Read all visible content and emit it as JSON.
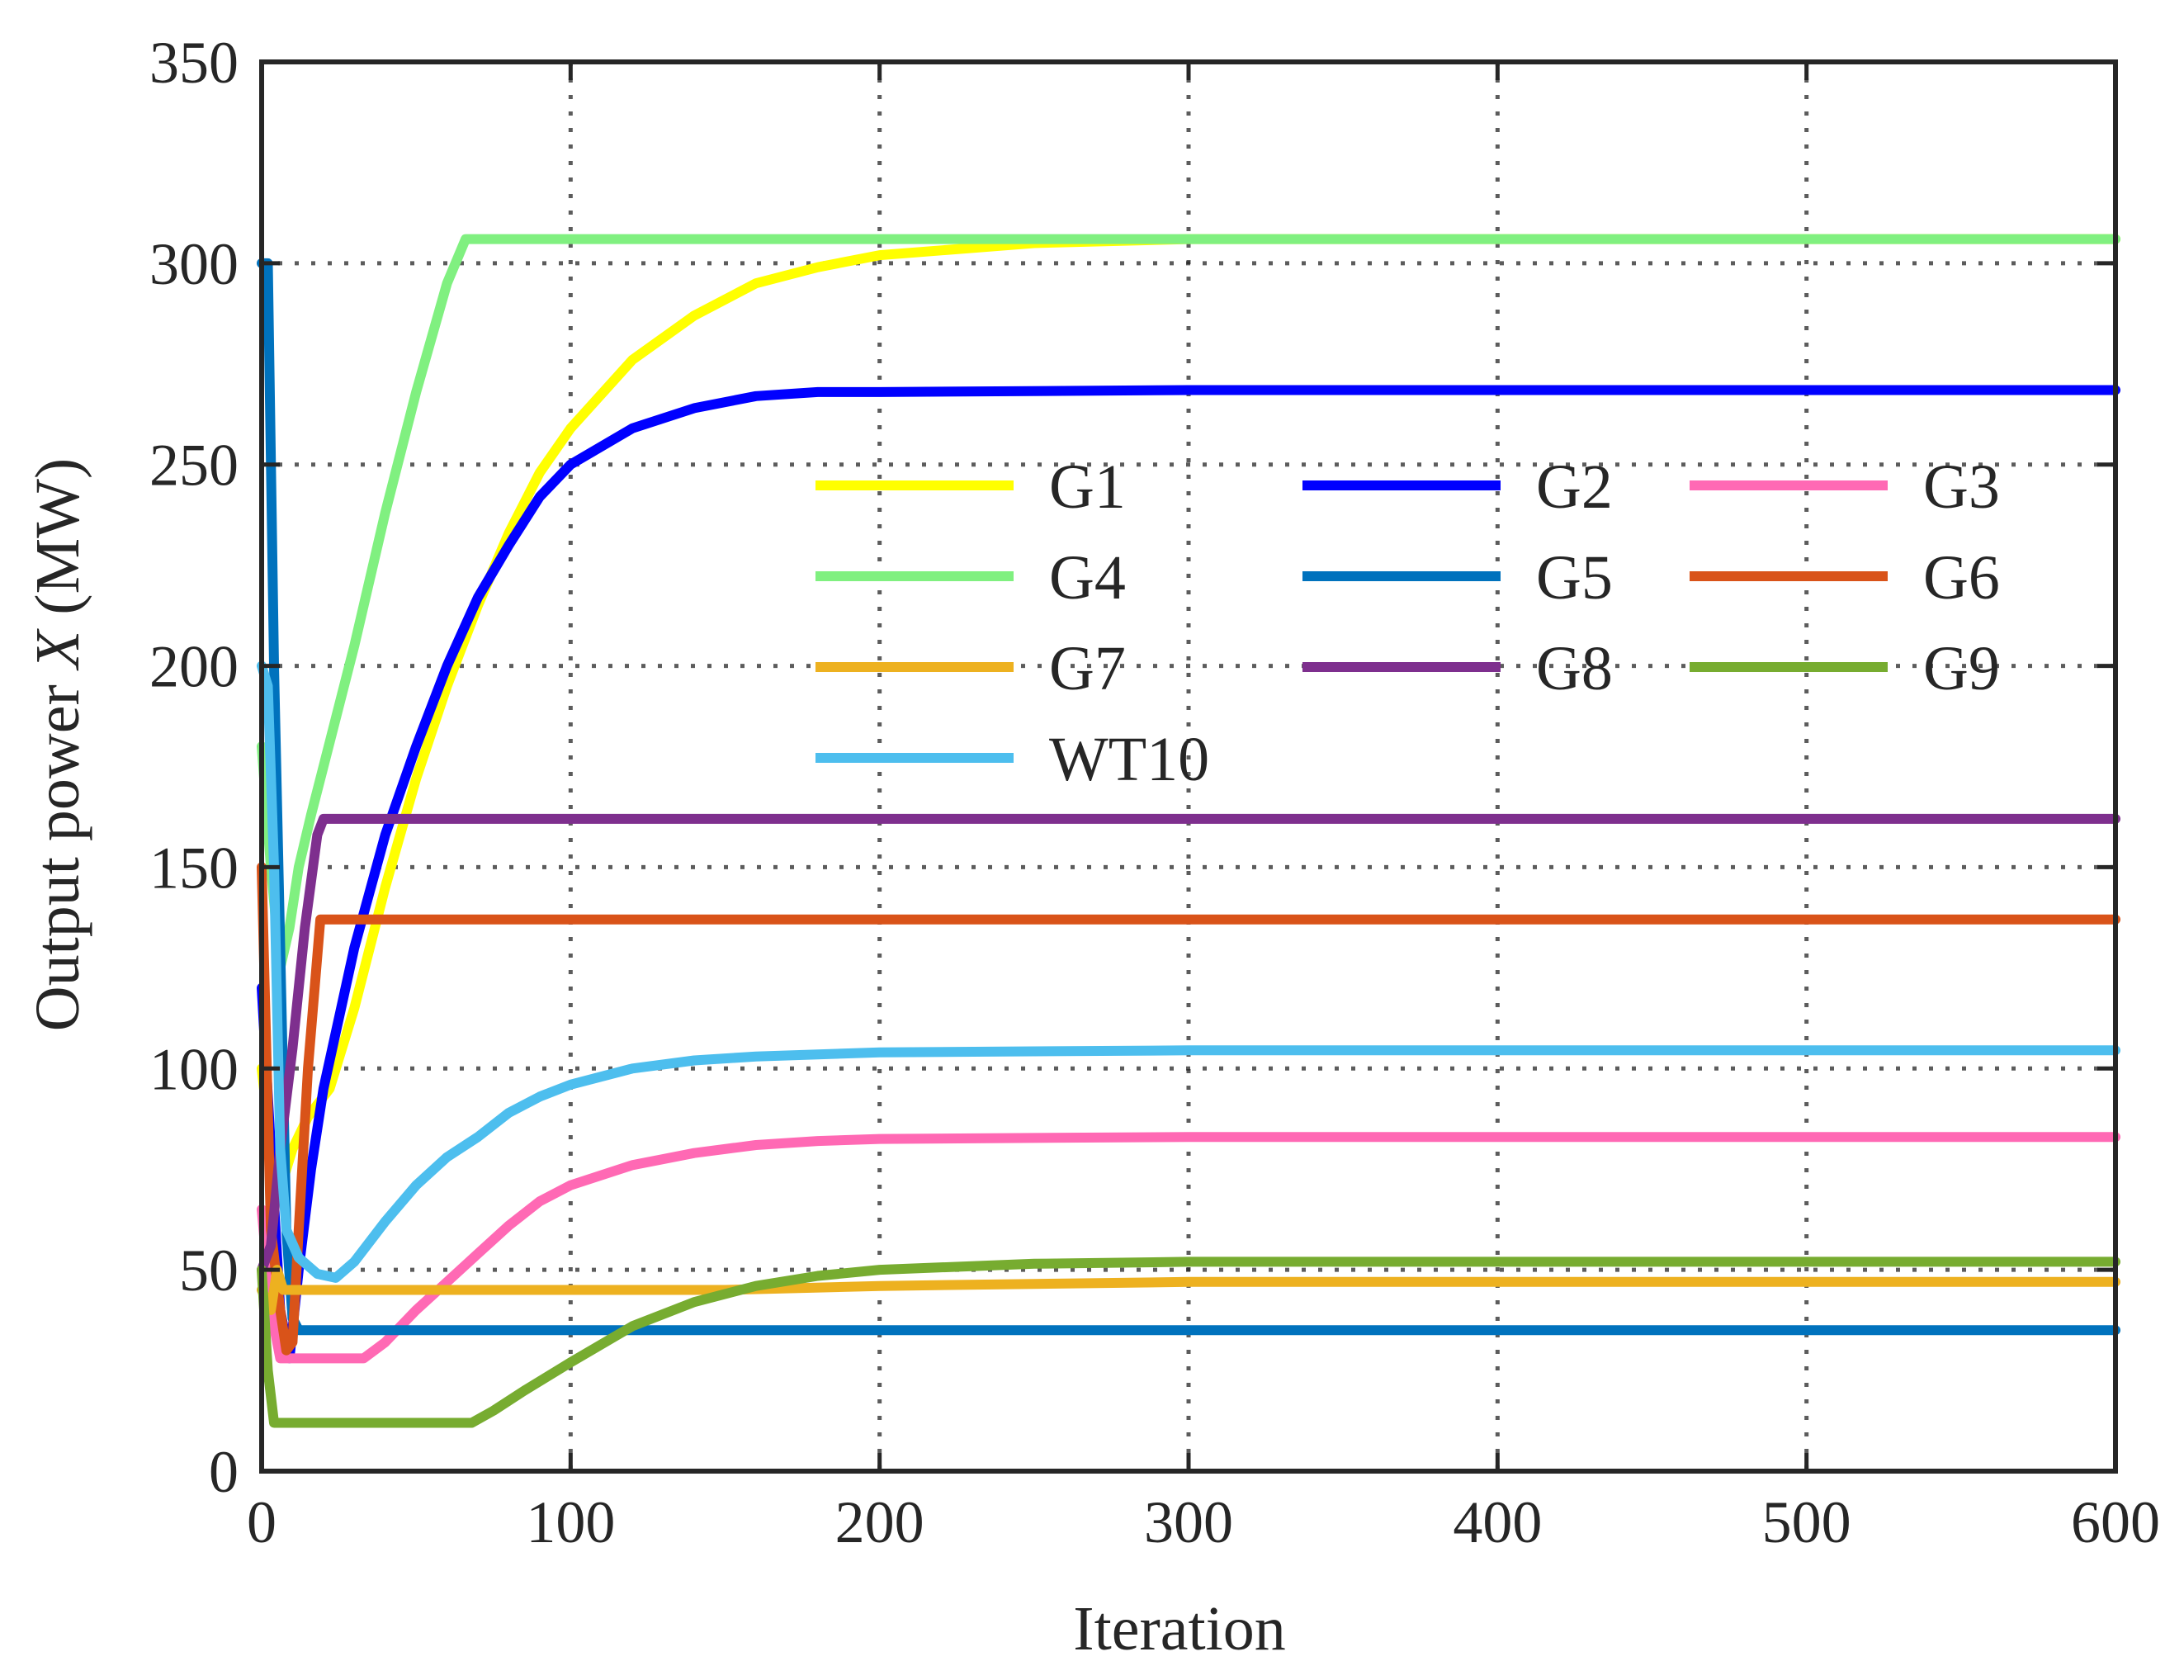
{
  "chart_data": {
    "type": "line",
    "title": "",
    "xlabel": "Iteration",
    "ylabel_prefix": "Output power ",
    "ylabel_var": "X",
    "ylabel_unit": " (MW)",
    "xlim": [
      0,
      600
    ],
    "ylim": [
      0,
      350
    ],
    "xticks": [
      0,
      100,
      200,
      300,
      400,
      500,
      600
    ],
    "yticks": [
      0,
      50,
      100,
      150,
      200,
      250,
      300,
      350
    ],
    "grid": true,
    "legend_position": "upper-right (inside axes), 3 columns",
    "series": [
      {
        "name": "G1",
        "color": "#FFFF00",
        "points": [
          [
            0,
            100
          ],
          [
            3,
            80
          ],
          [
            6,
            70
          ],
          [
            10,
            80
          ],
          [
            15,
            88
          ],
          [
            22,
            95
          ],
          [
            30,
            115
          ],
          [
            40,
            145
          ],
          [
            50,
            172
          ],
          [
            60,
            195
          ],
          [
            70,
            215
          ],
          [
            80,
            233
          ],
          [
            90,
            248
          ],
          [
            100,
            259
          ],
          [
            120,
            276
          ],
          [
            140,
            287
          ],
          [
            160,
            295
          ],
          [
            180,
            299
          ],
          [
            200,
            302
          ],
          [
            250,
            305
          ],
          [
            300,
            306
          ],
          [
            400,
            306
          ],
          [
            600,
            306
          ]
        ]
      },
      {
        "name": "G2",
        "color": "#0000FF",
        "points": [
          [
            0,
            120
          ],
          [
            3,
            80
          ],
          [
            6,
            40
          ],
          [
            9,
            28
          ],
          [
            12,
            50
          ],
          [
            16,
            75
          ],
          [
            20,
            95
          ],
          [
            30,
            130
          ],
          [
            40,
            158
          ],
          [
            50,
            180
          ],
          [
            60,
            200
          ],
          [
            70,
            217
          ],
          [
            80,
            230
          ],
          [
            90,
            242
          ],
          [
            100,
            250
          ],
          [
            120,
            259
          ],
          [
            140,
            264
          ],
          [
            160,
            267
          ],
          [
            180,
            268
          ],
          [
            200,
            268
          ],
          [
            300,
            268.5
          ],
          [
            600,
            268.5
          ]
        ]
      },
      {
        "name": "G3",
        "color": "#FF69B4",
        "points": [
          [
            0,
            65
          ],
          [
            3,
            40
          ],
          [
            6,
            28
          ],
          [
            10,
            28
          ],
          [
            20,
            28
          ],
          [
            33,
            28
          ],
          [
            40,
            32
          ],
          [
            50,
            40
          ],
          [
            60,
            47
          ],
          [
            70,
            54
          ],
          [
            80,
            61
          ],
          [
            90,
            67
          ],
          [
            100,
            71
          ],
          [
            120,
            76
          ],
          [
            140,
            79
          ],
          [
            160,
            81
          ],
          [
            180,
            82
          ],
          [
            200,
            82.5
          ],
          [
            300,
            83
          ],
          [
            600,
            83
          ]
        ]
      },
      {
        "name": "G4",
        "color": "#80F080",
        "points": [
          [
            0,
            180
          ],
          [
            3,
            150
          ],
          [
            6,
            125
          ],
          [
            9,
            135
          ],
          [
            12,
            150
          ],
          [
            16,
            163
          ],
          [
            20,
            175
          ],
          [
            30,
            205
          ],
          [
            40,
            238
          ],
          [
            50,
            268
          ],
          [
            60,
            295
          ],
          [
            66,
            306
          ],
          [
            80,
            306
          ],
          [
            200,
            306
          ],
          [
            600,
            306
          ]
        ]
      },
      {
        "name": "G5",
        "color": "#0072BD",
        "points": [
          [
            0,
            300
          ],
          [
            2,
            300
          ],
          [
            4,
            200
          ],
          [
            6,
            130
          ],
          [
            8,
            60
          ],
          [
            10,
            38
          ],
          [
            12,
            35
          ],
          [
            20,
            35
          ],
          [
            100,
            35
          ],
          [
            600,
            35
          ]
        ]
      },
      {
        "name": "G6",
        "color": "#D95319",
        "points": [
          [
            0,
            150
          ],
          [
            3,
            60
          ],
          [
            6,
            40
          ],
          [
            8,
            30
          ],
          [
            10,
            32
          ],
          [
            12,
            60
          ],
          [
            15,
            100
          ],
          [
            19,
            137
          ],
          [
            30,
            137
          ],
          [
            100,
            137
          ],
          [
            600,
            137
          ]
        ]
      },
      {
        "name": "G7",
        "color": "#EDB120",
        "points": [
          [
            0,
            45
          ],
          [
            3,
            40
          ],
          [
            5,
            50
          ],
          [
            7,
            45
          ],
          [
            10,
            45
          ],
          [
            50,
            45
          ],
          [
            100,
            45
          ],
          [
            150,
            45
          ],
          [
            200,
            46
          ],
          [
            250,
            46.5
          ],
          [
            300,
            47
          ],
          [
            600,
            47
          ]
        ]
      },
      {
        "name": "G8",
        "color": "#7E2F8E",
        "points": [
          [
            0,
            50
          ],
          [
            3,
            56
          ],
          [
            6,
            80
          ],
          [
            10,
            105
          ],
          [
            14,
            135
          ],
          [
            18,
            158
          ],
          [
            20,
            162
          ],
          [
            30,
            162
          ],
          [
            100,
            162
          ],
          [
            600,
            162
          ]
        ]
      },
      {
        "name": "G9",
        "color": "#77AC30",
        "points": [
          [
            0,
            50
          ],
          [
            2,
            25
          ],
          [
            4,
            12
          ],
          [
            10,
            12
          ],
          [
            40,
            12
          ],
          [
            68,
            12
          ],
          [
            75,
            15
          ],
          [
            85,
            20
          ],
          [
            100,
            27
          ],
          [
            120,
            36
          ],
          [
            140,
            42
          ],
          [
            160,
            46
          ],
          [
            180,
            48.5
          ],
          [
            200,
            50
          ],
          [
            250,
            51.5
          ],
          [
            300,
            52
          ],
          [
            600,
            52
          ]
        ]
      },
      {
        "name": "WT10",
        "color": "#4DBEEE",
        "points": [
          [
            0,
            200
          ],
          [
            2,
            195
          ],
          [
            4,
            150
          ],
          [
            6,
            80
          ],
          [
            8,
            60
          ],
          [
            12,
            53
          ],
          [
            18,
            49
          ],
          [
            24,
            48
          ],
          [
            30,
            52
          ],
          [
            40,
            62
          ],
          [
            50,
            71
          ],
          [
            60,
            78
          ],
          [
            70,
            83
          ],
          [
            80,
            89
          ],
          [
            90,
            93
          ],
          [
            100,
            96
          ],
          [
            120,
            100
          ],
          [
            140,
            102
          ],
          [
            160,
            103
          ],
          [
            200,
            104
          ],
          [
            300,
            104.5
          ],
          [
            600,
            104.5
          ]
        ]
      }
    ]
  }
}
